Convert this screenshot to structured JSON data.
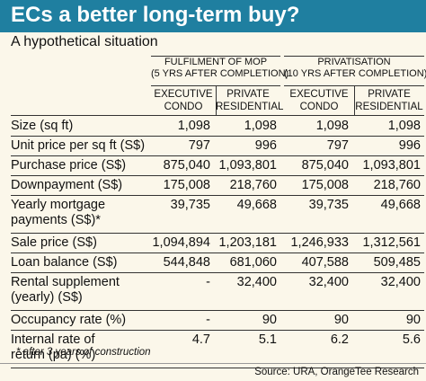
{
  "title": "ECs a better long-term buy?",
  "subtitle": "A hypothetical situation",
  "groups": [
    {
      "line1": "FULFILMENT OF MOP",
      "line2": "(5 YRS AFTER COMPLETION)"
    },
    {
      "line1": "PRIVATISATION",
      "line2": "(10 YRS AFTER COMPLETION)"
    }
  ],
  "columns": [
    {
      "line1": "EXECUTIVE",
      "line2": "CONDO"
    },
    {
      "line1": "PRIVATE",
      "line2": "RESIDENTIAL"
    },
    {
      "line1": "EXECUTIVE",
      "line2": "CONDO"
    },
    {
      "line1": "PRIVATE",
      "line2": "RESIDENTIAL"
    }
  ],
  "rows": [
    {
      "label1": "Size (sq ft)",
      "label2": "",
      "values": [
        "1,098",
        "1,098",
        "1,098",
        "1,098"
      ]
    },
    {
      "label1": "Unit price per sq ft (S$)",
      "label2": "",
      "values": [
        "797",
        "996",
        "797",
        "996"
      ]
    },
    {
      "label1": "Purchase price (S$)",
      "label2": "",
      "values": [
        "875,040",
        "1,093,801",
        "875,040",
        "1,093,801"
      ]
    },
    {
      "label1": "Downpayment (S$)",
      "label2": "",
      "values": [
        "175,008",
        "218,760",
        "175,008",
        "218,760"
      ]
    },
    {
      "label1": "Yearly mortgage",
      "label2": "payments (S$)*",
      "values": [
        "39,735",
        "49,668",
        "39,735",
        "49,668"
      ]
    },
    {
      "label1": "Sale price (S$)",
      "label2": "",
      "values": [
        "1,094,894",
        "1,203,181",
        "1,246,933",
        "1,312,561"
      ]
    },
    {
      "label1": "Loan balance (S$)",
      "label2": "",
      "values": [
        "544,848",
        "681,060",
        "407,588",
        "509,485"
      ]
    },
    {
      "label1": "Rental supplement",
      "label2": "(yearly) (S$)",
      "values": [
        "-",
        "32,400",
        "32,400",
        "32,400"
      ]
    },
    {
      "label1": "Occupancy rate (%)",
      "label2": "",
      "values": [
        "-",
        "90",
        "90",
        "90"
      ]
    },
    {
      "label1": "Internal rate of",
      "label2": "return (pa) (%)",
      "values": [
        "4.7",
        "5.1",
        "6.2",
        "5.6"
      ]
    }
  ],
  "footnote": "* after 3 years of construction",
  "source": "Source: URA, OrangeTee Research",
  "colors": {
    "title_bar": "#1f7fa0",
    "background": "#fbf7ea"
  }
}
